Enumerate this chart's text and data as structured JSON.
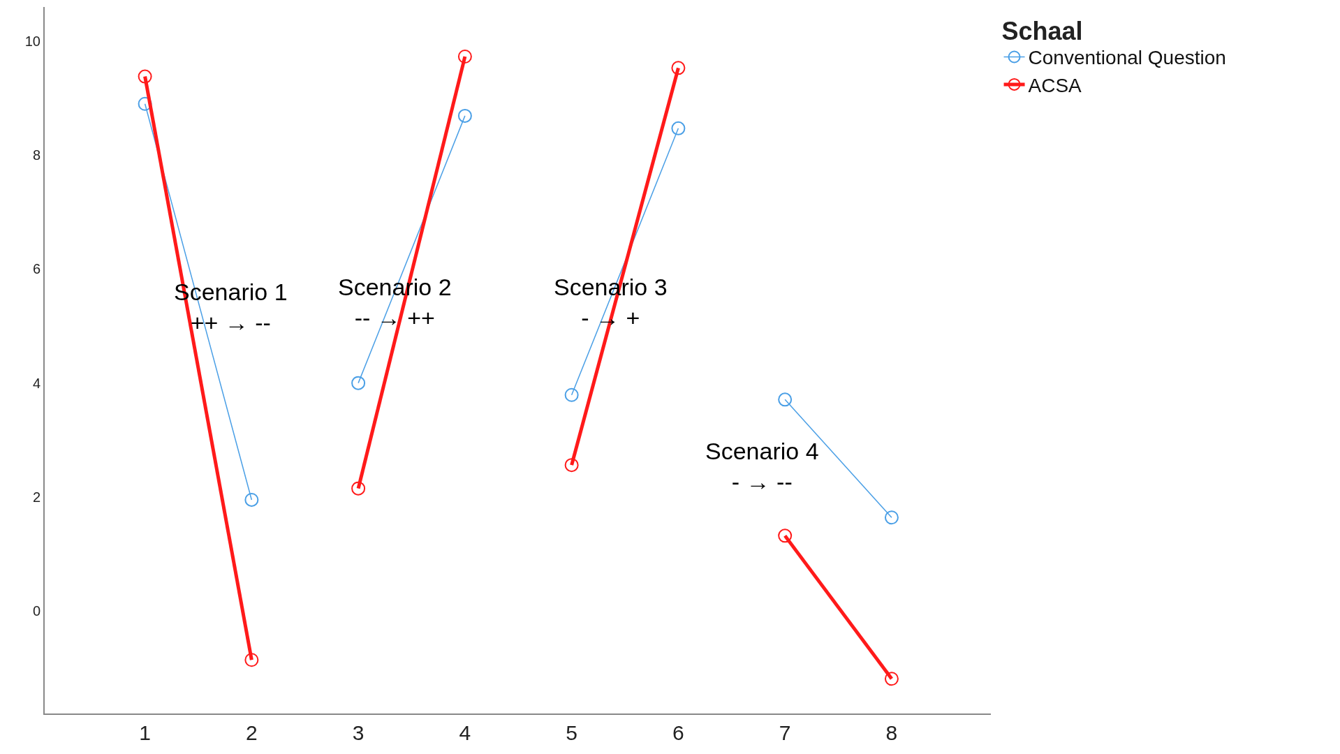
{
  "chart_data": {
    "type": "line",
    "legend_title": "Schaal",
    "legend": "top right",
    "marker": "circle",
    "grid": false,
    "xlim": [
      0.06,
      8.93
    ],
    "xticks": [
      1,
      2,
      3,
      4,
      5,
      6,
      7,
      8
    ],
    "ylim": [
      -1.8,
      10.6
    ],
    "yticks": [
      0,
      2,
      4,
      6,
      8,
      10
    ],
    "series": [
      {
        "name": "Conventional Question",
        "color": "#4a9fe6",
        "x": [
          1,
          2
        ],
        "values": [
          8.9,
          1.95
        ]
      },
      {
        "color": "#4a9fe6",
        "x": [
          3,
          4
        ],
        "values": [
          4.0,
          8.69
        ]
      },
      {
        "color": "#4a9fe6",
        "x": [
          5,
          6
        ],
        "values": [
          3.79,
          8.47
        ]
      },
      {
        "color": "#4a9fe6",
        "x": [
          7,
          8
        ],
        "values": [
          3.71,
          1.64
        ]
      },
      {
        "name": "ACSA",
        "color": "#ff1a1a",
        "x": [
          1,
          2
        ],
        "values": [
          9.38,
          -0.86
        ]
      },
      {
        "color": "#ff1a1a",
        "x": [
          3,
          4
        ],
        "values": [
          2.15,
          9.73
        ]
      },
      {
        "color": "#ff1a1a",
        "x": [
          5,
          6
        ],
        "values": [
          2.56,
          9.53
        ]
      },
      {
        "color": "#ff1a1a",
        "x": [
          7,
          8
        ],
        "values": [
          1.32,
          -1.19
        ]
      }
    ],
    "annotations": [
      "Scenario 1\n++ → --",
      "Scenario 2\n-- → ++",
      "Scenario 3\n- → +",
      "Scenario 4\n- → --"
    ]
  }
}
